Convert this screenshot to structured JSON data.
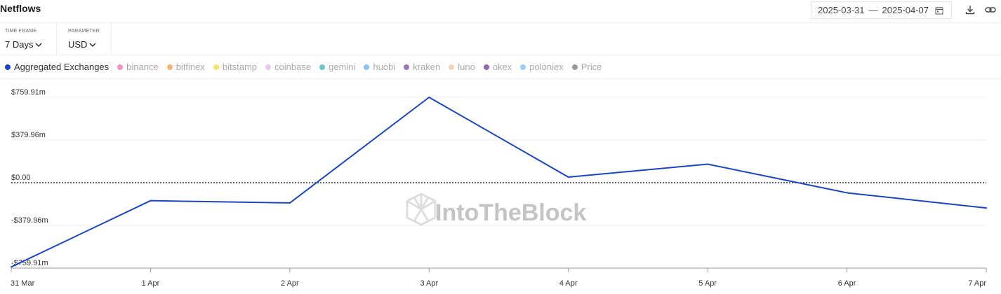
{
  "header": {
    "title": "Netflows",
    "date_start": "2025-03-31",
    "date_separator": "—",
    "date_end": "2025-04-07"
  },
  "icons": {
    "calendar": "calendar-icon",
    "download": "download-icon",
    "link": "link-icon",
    "chevron": "chevron-down-icon"
  },
  "params": {
    "timeframe": {
      "label": "TIME FRAME",
      "value": "7 Days"
    },
    "parameter": {
      "label": "PARAMETER",
      "value": "USD"
    }
  },
  "legend": [
    {
      "label": "Aggregated Exchanges",
      "color": "#1a44c8",
      "active": true
    },
    {
      "label": "binance",
      "color": "#f48fc4",
      "active": false
    },
    {
      "label": "bitfinex",
      "color": "#f5b27a",
      "active": false
    },
    {
      "label": "bitstamp",
      "color": "#f2e56a",
      "active": false
    },
    {
      "label": "coinbase",
      "color": "#ecc6f2",
      "active": false
    },
    {
      "label": "gemini",
      "color": "#6fc7c9",
      "active": false
    },
    {
      "label": "huobi",
      "color": "#8cc2ea",
      "active": false
    },
    {
      "label": "kraken",
      "color": "#9a7bb8",
      "active": false
    },
    {
      "label": "luno",
      "color": "#f7d3b4",
      "active": false
    },
    {
      "label": "okex",
      "color": "#9467b0",
      "active": false
    },
    {
      "label": "poloniex",
      "color": "#93d1f0",
      "active": false
    },
    {
      "label": "Price",
      "color": "#999999",
      "active": false
    }
  ],
  "watermark": "IntoTheBlock",
  "chart_data": {
    "type": "line",
    "x": [
      "31 Mar",
      "1 Apr",
      "2 Apr",
      "3 Apr",
      "4 Apr",
      "5 Apr",
      "6 Apr",
      "7 Apr"
    ],
    "series": [
      {
        "name": "Aggregated Exchanges",
        "color": "#1a44c8",
        "values": [
          -750,
          -160,
          -180,
          760,
          50,
          165,
          -90,
          -225
        ]
      }
    ],
    "yticks": [
      759.91,
      379.96,
      0,
      -379.96,
      -759.91
    ],
    "ytick_labels": [
      "$759.91m",
      "$379.96m",
      "$0.00",
      "-$379.96m",
      "-$759.91m"
    ],
    "ylim": [
      -759.91,
      759.91
    ],
    "zero_line": "dotted",
    "grid": true
  }
}
